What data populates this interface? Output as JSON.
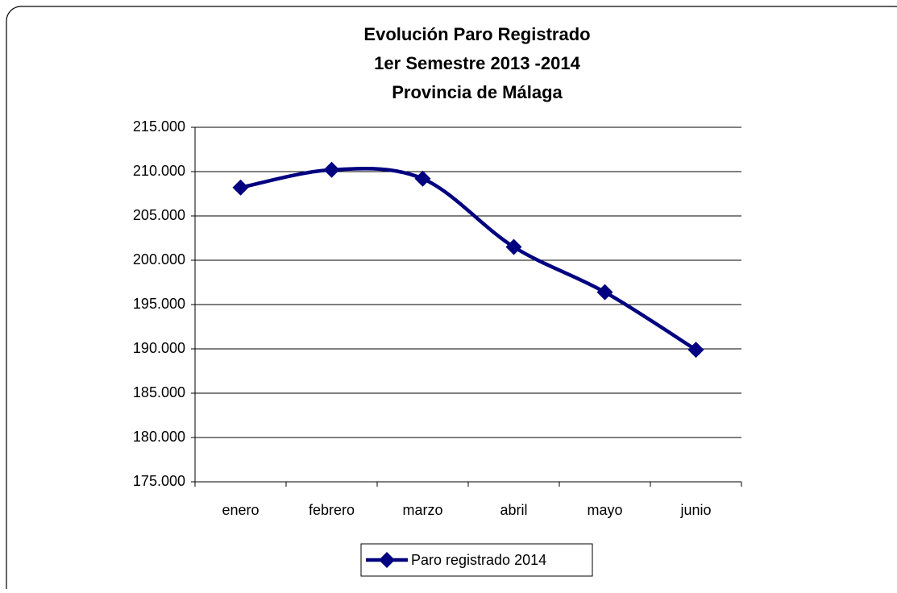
{
  "chart_data": {
    "type": "line",
    "title": [
      "Evolución Paro Registrado",
      "1er Semestre 2013 -2014",
      "Provincia de Málaga"
    ],
    "categories": [
      "enero",
      "febrero",
      "marzo",
      "abril",
      "mayo",
      "junio"
    ],
    "series": [
      {
        "name": "Paro registrado 2014",
        "color": "#000080",
        "values": [
          208200,
          210200,
          209200,
          201500,
          196400,
          189900
        ]
      }
    ],
    "ylim": [
      175000,
      215000
    ],
    "yticks": [
      {
        "value": 175000,
        "label": "175.000"
      },
      {
        "value": 180000,
        "label": "180.000"
      },
      {
        "value": 185000,
        "label": "185.000"
      },
      {
        "value": 190000,
        "label": "190.000"
      },
      {
        "value": 195000,
        "label": "195.000"
      },
      {
        "value": 200000,
        "label": "200.000"
      },
      {
        "value": 205000,
        "label": "205.000"
      },
      {
        "value": 210000,
        "label": "210.000"
      },
      {
        "value": 215000,
        "label": "215.000"
      }
    ],
    "grid": true,
    "smooth": true,
    "legend": "bottom"
  }
}
